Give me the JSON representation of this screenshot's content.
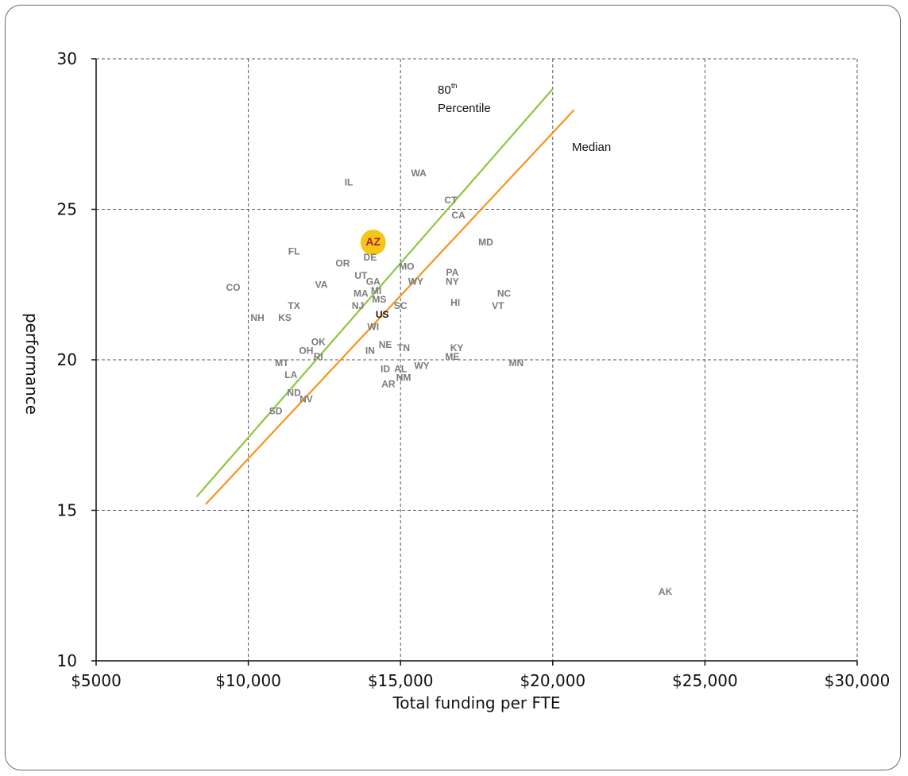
{
  "chart_data": {
    "type": "scatter",
    "title": "",
    "xlabel": "Total funding per FTE",
    "ylabel": "performance",
    "xlim": [
      5000,
      30000
    ],
    "ylim": [
      10,
      30
    ],
    "x_ticks": [
      5000,
      10000,
      15000,
      20000,
      25000,
      30000
    ],
    "x_tick_labels": [
      "$5000",
      "$10,000",
      "$15,000",
      "$20,000",
      "$25,000",
      "$30,000"
    ],
    "y_ticks": [
      10,
      15,
      20,
      25,
      30
    ],
    "y_tick_labels": [
      "10",
      "15",
      "20",
      "25",
      "30"
    ],
    "grid": true,
    "colors": {
      "p80": "#8dc63f",
      "median": "#f7941d",
      "highlight": "#f5c518"
    },
    "lines": [
      {
        "name": "80th Percentile",
        "label_main": "80",
        "label_sup": "th",
        "label_sub": "Percentile",
        "x": [
          8300,
          20000
        ],
        "y": [
          15.45,
          29.0
        ]
      },
      {
        "name": "Median",
        "x": [
          8600,
          20700
        ],
        "y": [
          15.2,
          28.3
        ]
      }
    ],
    "points": [
      {
        "label": "IL",
        "x": 13300,
        "y": 25.9
      },
      {
        "label": "WA",
        "x": 15600,
        "y": 26.2
      },
      {
        "label": "CT",
        "x": 16650,
        "y": 25.3
      },
      {
        "label": "CA",
        "x": 16900,
        "y": 24.8
      },
      {
        "label": "MD",
        "x": 17800,
        "y": 23.9
      },
      {
        "label": "AZ",
        "x": 14100,
        "y": 23.9,
        "highlight": true
      },
      {
        "label": "FL",
        "x": 11500,
        "y": 23.6
      },
      {
        "label": "DE",
        "x": 14000,
        "y": 23.4
      },
      {
        "label": "OR",
        "x": 13100,
        "y": 23.2
      },
      {
        "label": "MO",
        "x": 15200,
        "y": 23.1
      },
      {
        "label": "UT",
        "x": 13700,
        "y": 22.8
      },
      {
        "label": "PA",
        "x": 16700,
        "y": 22.9
      },
      {
        "label": "GA",
        "x": 14100,
        "y": 22.6
      },
      {
        "label": "WY",
        "x": 15500,
        "y": 22.6
      },
      {
        "label": "NY",
        "x": 16700,
        "y": 22.6
      },
      {
        "label": "VA",
        "x": 12400,
        "y": 22.5
      },
      {
        "label": "CO",
        "x": 9500,
        "y": 22.4
      },
      {
        "label": "MA",
        "x": 13700,
        "y": 22.2
      },
      {
        "label": "MI",
        "x": 14200,
        "y": 22.3
      },
      {
        "label": "NC",
        "x": 18400,
        "y": 22.2
      },
      {
        "label": "MS",
        "x": 14300,
        "y": 22.0
      },
      {
        "label": "TX",
        "x": 11500,
        "y": 21.8
      },
      {
        "label": "NJ",
        "x": 13600,
        "y": 21.8
      },
      {
        "label": "SC",
        "x": 15000,
        "y": 21.8
      },
      {
        "label": "HI",
        "x": 16800,
        "y": 21.9
      },
      {
        "label": "VT",
        "x": 18200,
        "y": 21.8
      },
      {
        "label": "US",
        "x": 14400,
        "y": 21.5,
        "bold": true
      },
      {
        "label": "NH",
        "x": 10300,
        "y": 21.4
      },
      {
        "label": "KS",
        "x": 11200,
        "y": 21.4
      },
      {
        "label": "WI",
        "x": 14100,
        "y": 21.1
      },
      {
        "label": "OK",
        "x": 12300,
        "y": 20.6
      },
      {
        "label": "NE",
        "x": 14500,
        "y": 20.5
      },
      {
        "label": "TN",
        "x": 15100,
        "y": 20.4
      },
      {
        "label": "KY",
        "x": 16850,
        "y": 20.4
      },
      {
        "label": "OH",
        "x": 11900,
        "y": 20.3
      },
      {
        "label": "IN",
        "x": 14000,
        "y": 20.3
      },
      {
        "label": "RI",
        "x": 12300,
        "y": 20.1
      },
      {
        "label": "ME",
        "x": 16700,
        "y": 20.1
      },
      {
        "label": "MT",
        "x": 11100,
        "y": 19.9
      },
      {
        "label": "MN",
        "x": 18800,
        "y": 19.9
      },
      {
        "label": "WY",
        "x": 15700,
        "y": 19.8
      },
      {
        "label": "ID",
        "x": 14500,
        "y": 19.7
      },
      {
        "label": "AL",
        "x": 15000,
        "y": 19.7
      },
      {
        "label": "LA",
        "x": 11400,
        "y": 19.5
      },
      {
        "label": "NM",
        "x": 15100,
        "y": 19.4
      },
      {
        "label": "AR",
        "x": 14600,
        "y": 19.2
      },
      {
        "label": "ND",
        "x": 11500,
        "y": 18.9
      },
      {
        "label": "NV",
        "x": 11900,
        "y": 18.7
      },
      {
        "label": "SD",
        "x": 10900,
        "y": 18.3
      },
      {
        "label": "AK",
        "x": 23700,
        "y": 12.3
      }
    ]
  }
}
